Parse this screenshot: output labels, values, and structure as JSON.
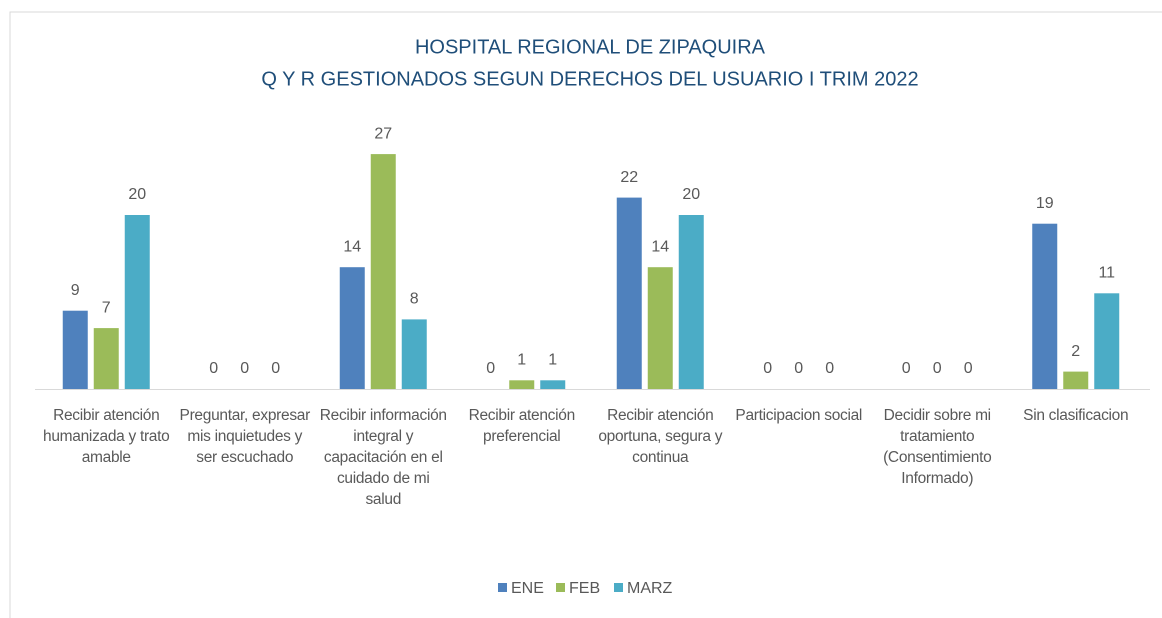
{
  "chart_data": {
    "type": "bar",
    "title": "HOSPITAL REGIONAL DE ZIPAQUIRA",
    "subtitle": "Q Y R GESTIONADOS SEGUN DERECHOS DEL USUARIO I TRIM 2022",
    "categories": [
      "Recibir atención humanizada y trato amable",
      "Preguntar, expresar mis inquietudes y ser escuchado",
      "Recibir información integral y capacitación en el cuidado de mi salud",
      "Recibir atención preferencial",
      "Recibir atención oportuna, segura y continua",
      "Participacion social",
      "Decidir sobre mi tratamiento (Consentimiento Informado)",
      "Sin clasificacion"
    ],
    "series": [
      {
        "name": "ENE",
        "color": "#4f81bd",
        "values": [
          9,
          0,
          14,
          0,
          22,
          0,
          0,
          19
        ]
      },
      {
        "name": "FEB",
        "color": "#9bbb59",
        "values": [
          7,
          0,
          27,
          1,
          14,
          0,
          0,
          2
        ]
      },
      {
        "name": "MARZ",
        "color": "#4bacc6",
        "values": [
          20,
          0,
          8,
          1,
          20,
          0,
          0,
          11
        ]
      }
    ],
    "legend": "bottom"
  }
}
